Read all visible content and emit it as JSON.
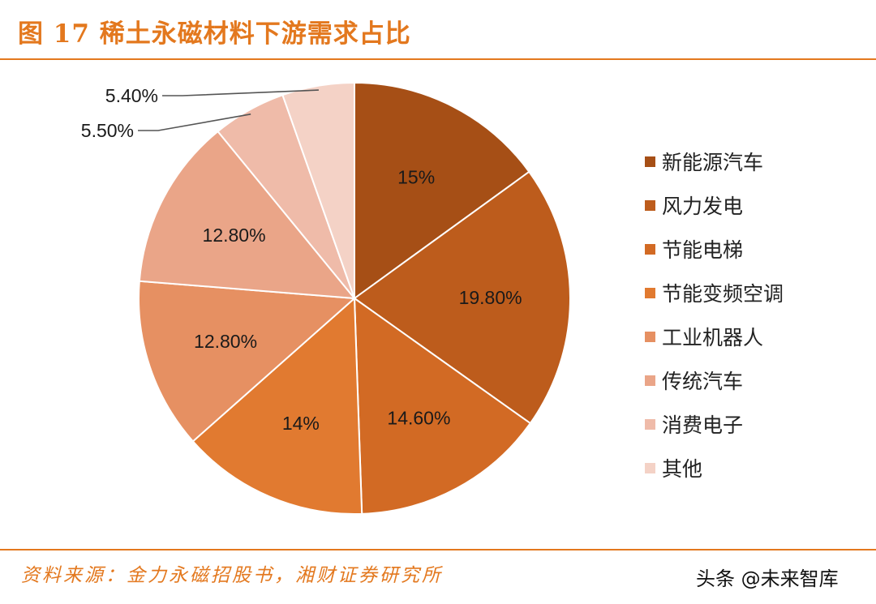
{
  "title": "图 17 稀土永磁材料下游需求占比",
  "source": "资料来源：金力永磁招股书，湘财证券研究所",
  "watermark": "头条 @未来智库",
  "colors": {
    "accent": "#e3781e",
    "slices": [
      "#a64f16",
      "#bd5c1c",
      "#d26a24",
      "#e17a30",
      "#e69062",
      "#eaa588",
      "#efbba9",
      "#f4d2c6"
    ]
  },
  "chart_data": {
    "type": "pie",
    "start": "top, clockwise",
    "legend_position": "right",
    "slices": [
      {
        "label": "新能源汽车",
        "value": 15,
        "value_label": "15%"
      },
      {
        "label": "风力发电",
        "value": 19.8,
        "value_label": "19.80%"
      },
      {
        "label": "节能电梯",
        "value": 14.6,
        "value_label": "14.60%"
      },
      {
        "label": "节能变频空调",
        "value": 14,
        "value_label": "14%"
      },
      {
        "label": "工业机器人",
        "value": 12.8,
        "value_label": "12.80%"
      },
      {
        "label": "传统汽车",
        "value": 12.8,
        "value_label": "12.80%"
      },
      {
        "label": "消费电子",
        "value": 5.5,
        "value_label": "5.50%"
      },
      {
        "label": "其他",
        "value": 5.4,
        "value_label": "5.40%"
      }
    ]
  }
}
